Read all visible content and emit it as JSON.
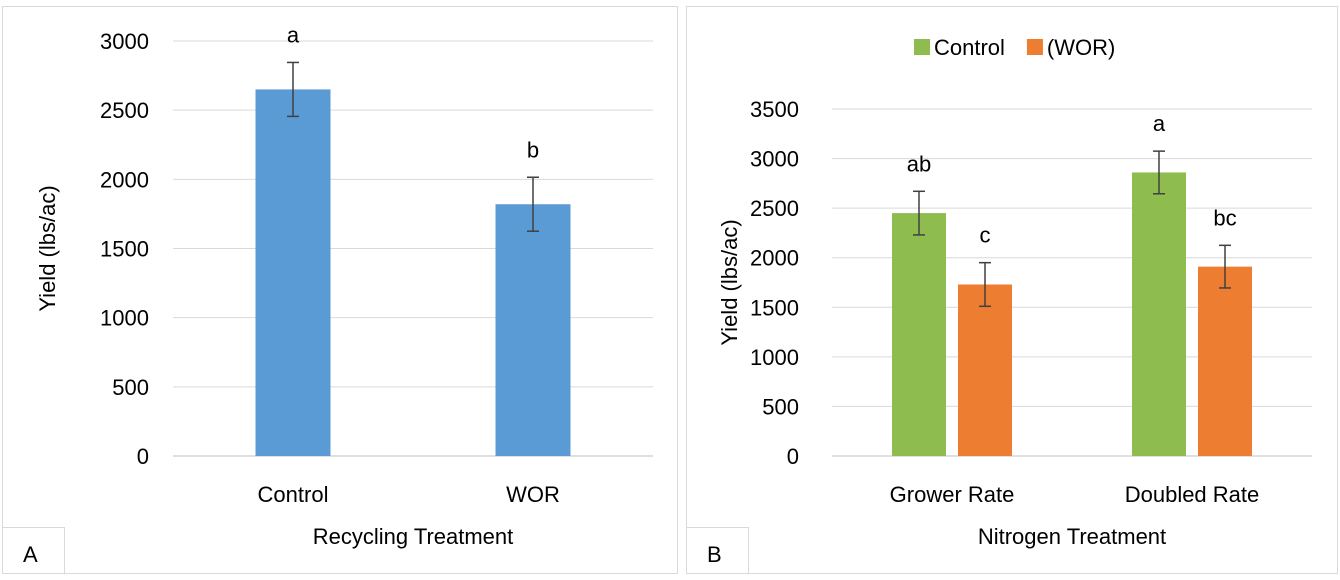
{
  "chart_data": [
    {
      "panel_label": "A",
      "type": "bar",
      "categories": [
        "Control",
        "WOR"
      ],
      "values": [
        2650,
        1820
      ],
      "errors": [
        195,
        195
      ],
      "significance": [
        "a",
        "b"
      ],
      "xlabel": "Recycling Treatment",
      "ylabel": "Yield (lbs/ac)",
      "ylim": [
        0,
        3000
      ],
      "yticks": [
        0,
        500,
        1000,
        1500,
        2000,
        2500,
        3000
      ],
      "grid": true,
      "colors": [
        "#5b9bd5"
      ]
    },
    {
      "panel_label": "B",
      "type": "bar",
      "categories": [
        "Grower Rate",
        "Doubled Rate"
      ],
      "series": [
        {
          "name": "Control",
          "values": [
            2450,
            2860
          ],
          "errors": [
            220,
            215
          ],
          "significance": [
            "ab",
            "a"
          ],
          "color": "#8fbc4f"
        },
        {
          "name": "(WOR)",
          "values": [
            1730,
            1910
          ],
          "errors": [
            220,
            215
          ],
          "significance": [
            "c",
            "bc"
          ],
          "color": "#ed7d31"
        }
      ],
      "xlabel": "Nitrogen Treatment",
      "ylabel": "Yield (lbs/ac)",
      "ylim": [
        0,
        3500
      ],
      "yticks": [
        0,
        500,
        1000,
        1500,
        2000,
        2500,
        3000,
        3500
      ],
      "grid": true,
      "legend": "top"
    }
  ]
}
